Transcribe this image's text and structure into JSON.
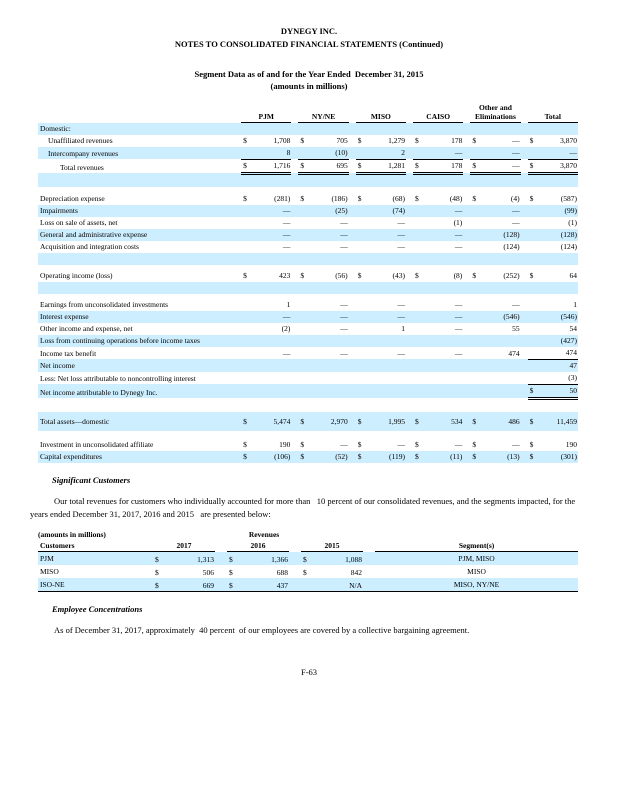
{
  "document": {
    "title_line1": "DYNEGY INC.",
    "title_line2": "NOTES TO CONSOLIDATED FINANCIAL STATEMENTS (Continued)",
    "subtitle_line1": "Segment Data as of and for the Year Ended  December 31, 2015",
    "subtitle_line2": "(amounts in millions)",
    "page_number": "F-63"
  },
  "segment_table": {
    "columns": [
      "PJM",
      "NY/NE",
      "MISO",
      "CAISO",
      "Other and Eliminations",
      "Total"
    ],
    "rows": [
      {
        "label": "Domestic:",
        "indent": 0,
        "shaded": true,
        "d": "none",
        "values": [
          "",
          "",
          "",
          "",
          "",
          ""
        ]
      },
      {
        "label": "Unaffiliated revenues",
        "indent": 1,
        "shaded": false,
        "d": "all",
        "values": [
          "1,708",
          "705",
          "1,279",
          "178",
          "—",
          "3,870"
        ]
      },
      {
        "label": "Intercompany revenues",
        "indent": 1,
        "shaded": true,
        "d": "none",
        "values": [
          "8",
          "(10)",
          "2",
          "—",
          "—",
          "—"
        ],
        "u": [
          0,
          1,
          2,
          3,
          4,
          5
        ]
      },
      {
        "label": "Total revenues",
        "indent": 2,
        "shaded": false,
        "d": "all",
        "values": [
          "1,716",
          "695",
          "1,281",
          "178",
          "—",
          "3,870"
        ],
        "uu": [
          0,
          1,
          2,
          3,
          4,
          5
        ]
      },
      {
        "spacer": true,
        "shaded": true,
        "h": 10
      },
      {
        "spacer": true,
        "shaded": false,
        "h": 4
      },
      {
        "label": "Depreciation expense",
        "indent": 0,
        "shaded": false,
        "d": "all",
        "values": [
          "(281)",
          "(186)",
          "(68)",
          "(48)",
          "(4)",
          "(587)"
        ]
      },
      {
        "label": "Impairments",
        "indent": 0,
        "shaded": true,
        "d": "none",
        "values": [
          "—",
          "(25)",
          "(74)",
          "—",
          "—",
          "(99)"
        ]
      },
      {
        "label": "Loss on sale of assets, net",
        "indent": 0,
        "shaded": false,
        "d": "none",
        "values": [
          "—",
          "—",
          "—",
          "(1)",
          "—",
          "(1)"
        ]
      },
      {
        "label": "General and administrative expense",
        "indent": 0,
        "shaded": true,
        "d": "none",
        "values": [
          "—",
          "—",
          "—",
          "—",
          "(128)",
          "(128)"
        ]
      },
      {
        "label": "Acquisition and integration costs",
        "indent": 0,
        "shaded": false,
        "d": "none",
        "values": [
          "—",
          "—",
          "—",
          "—",
          "(124)",
          "(124)"
        ]
      },
      {
        "spacer": true,
        "shaded": true,
        "h": 10
      },
      {
        "spacer": true,
        "shaded": false,
        "h": 3
      },
      {
        "label": "Operating income (loss)",
        "indent": 0,
        "shaded": false,
        "d": "all",
        "values": [
          "423",
          "(56)",
          "(43)",
          "(8)",
          "(252)",
          "64"
        ]
      },
      {
        "spacer": true,
        "shaded": true,
        "h": 10
      },
      {
        "spacer": true,
        "shaded": false,
        "h": 3
      },
      {
        "label": "Earnings from unconsolidated investments",
        "indent": 0,
        "shaded": false,
        "d": "none",
        "values": [
          "1",
          "—",
          "—",
          "—",
          "—",
          "1"
        ]
      },
      {
        "label": "Interest expense",
        "indent": 0,
        "shaded": true,
        "d": "none",
        "values": [
          "—",
          "—",
          "—",
          "—",
          "(546)",
          "(546)"
        ]
      },
      {
        "label": "Other income and expense, net",
        "indent": 0,
        "shaded": false,
        "d": "none",
        "values": [
          "(2)",
          "—",
          "1",
          "—",
          "55",
          "54"
        ]
      },
      {
        "label": "Loss from continuing operations before income taxes",
        "indent": 0,
        "shaded": true,
        "d": "none",
        "values": [
          "",
          "",
          "",
          "",
          "",
          "(427)"
        ]
      },
      {
        "label": "Income tax benefit",
        "indent": 0,
        "shaded": false,
        "d": "none",
        "values": [
          "—",
          "—",
          "—",
          "—",
          "474",
          "474"
        ],
        "u": [
          5
        ]
      },
      {
        "label": "Net income",
        "indent": 0,
        "shaded": true,
        "d": "none",
        "values": [
          "",
          "",
          "",
          "",
          "",
          "47"
        ]
      },
      {
        "label": "Less: Net loss attributable to noncontrolling interest",
        "indent": 0,
        "shaded": false,
        "d": "none",
        "values": [
          "",
          "",
          "",
          "",
          "",
          "(3)"
        ],
        "u": [
          5
        ]
      },
      {
        "label": "Net income attributable to Dynegy Inc.",
        "indent": 0,
        "shaded": true,
        "d": "total",
        "values": [
          "",
          "",
          "",
          "",
          "",
          "50"
        ],
        "uu": [
          5
        ]
      },
      {
        "spacer": true,
        "shaded": false,
        "h": 10
      },
      {
        "label": "Total assets—domestic",
        "indent": 0,
        "shaded": true,
        "d": "all",
        "values": [
          "5,474",
          "2,970",
          "1,995",
          "534",
          "486",
          "11,459"
        ],
        "tall": true
      },
      {
        "spacer": true,
        "shaded": false,
        "h": 6
      },
      {
        "label": "Investment in unconsolidated affiliate",
        "indent": 0,
        "shaded": false,
        "d": "all",
        "values": [
          "190",
          "—",
          "—",
          "—",
          "—",
          "190"
        ]
      },
      {
        "label": "Capital expenditures",
        "indent": 0,
        "shaded": true,
        "d": "all",
        "values": [
          "(106)",
          "(52)",
          "(119)",
          "(11)",
          "(13)",
          "(301)"
        ]
      }
    ]
  },
  "significant_customers": {
    "heading": "Significant Customers",
    "paragraph": "Our total revenues for customers who individually accounted for more than   10 percent of our consolidated revenues, and the segments impacted, for the years ended December 31, 2017, 2016 and 2015   are presented below:"
  },
  "customers_table": {
    "caption": "(amounts in millions)",
    "revenues_header": "Revenues",
    "col_customers": "Customers",
    "years": [
      "2017",
      "2016",
      "2015"
    ],
    "col_segments": "Segment(s)",
    "rows": [
      {
        "customer": "PJM",
        "shaded": true,
        "dollars": [
          true,
          true,
          true
        ],
        "values": [
          "1,313",
          "1,366",
          "1,088"
        ],
        "segment": "PJM, MISO"
      },
      {
        "customer": "MISO",
        "shaded": false,
        "dollars": [
          true,
          true,
          true
        ],
        "values": [
          "506",
          "688",
          "842"
        ],
        "segment": "MISO"
      },
      {
        "customer": "ISO-NE",
        "shaded": true,
        "dollars": [
          true,
          true,
          false
        ],
        "values": [
          "669",
          "437",
          "N/A"
        ],
        "segment": "MISO, NY/NE",
        "last": true
      }
    ]
  },
  "employee_concentrations": {
    "heading": "Employee Concentrations",
    "paragraph": "As of December 31, 2017, approximately  40 percent  of our employees are covered by a collective bargaining agreement."
  }
}
